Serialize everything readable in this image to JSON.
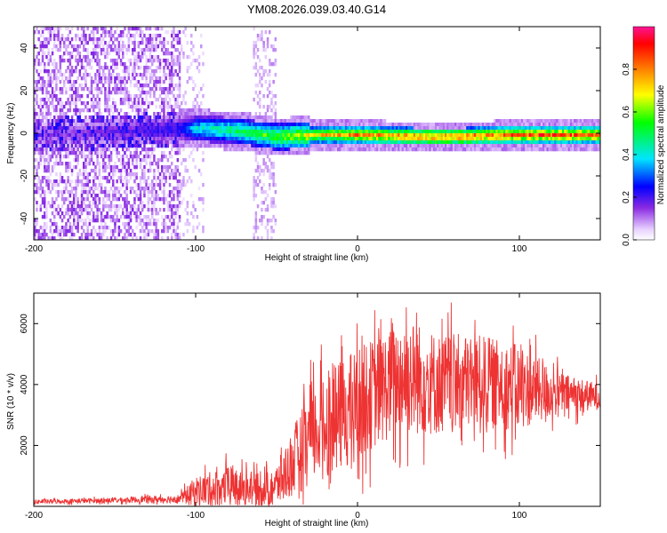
{
  "title": "YM08.2026.039.03.40.G14",
  "chart_data": [
    {
      "type": "heatmap",
      "title": "",
      "xlabel": "Height of straight line (km)",
      "ylabel": "Frequency (Hz)",
      "xlim": [
        -200,
        150
      ],
      "ylim": [
        -50,
        50
      ],
      "xticks": [
        -200,
        -100,
        0,
        100
      ],
      "yticks": [
        -40,
        -20,
        0,
        20,
        40
      ],
      "xtick_labels": [
        "-200",
        "-100",
        "0",
        "100"
      ],
      "ytick_labels": [
        "-40",
        "-20",
        "0",
        "20",
        "40"
      ],
      "colorbar": {
        "label": "Normalized spectral amplitude",
        "range": [
          0,
          1
        ],
        "ticks": [
          0,
          0.2,
          0.4,
          0.6,
          0.8
        ],
        "tick_labels": [
          "0.0",
          "0.2",
          "0.4",
          "0.6",
          "0.8"
        ]
      },
      "ridge_frequency": [
        {
          "x": -200,
          "f": 0
        },
        {
          "x": -100,
          "f": 3
        },
        {
          "x": -75,
          "f": 2
        },
        {
          "x": -50,
          "f": -1
        },
        {
          "x": -25,
          "f": 0
        },
        {
          "x": 0,
          "f": 0
        },
        {
          "x": 50,
          "f": -1
        },
        {
          "x": 100,
          "f": 0
        },
        {
          "x": 150,
          "f": 0
        }
      ],
      "ridge_amplitude": [
        {
          "x": -175,
          "a": 0.15
        },
        {
          "x": -110,
          "a": 0.25
        },
        {
          "x": -100,
          "a": 0.45
        },
        {
          "x": -75,
          "a": 0.55
        },
        {
          "x": -55,
          "a": 0.62
        },
        {
          "x": -30,
          "a": 0.75
        },
        {
          "x": 0,
          "a": 0.85
        },
        {
          "x": 50,
          "a": 0.9
        },
        {
          "x": 100,
          "a": 0.92
        },
        {
          "x": 150,
          "a": 0.88
        }
      ]
    },
    {
      "type": "line",
      "title": "",
      "xlabel": "Height of straight line (km)",
      "ylabel": "SNR (10 * v/v)",
      "xlim": [
        -200,
        150
      ],
      "ylim": [
        0,
        7000
      ],
      "xticks": [
        -200,
        -100,
        0,
        100
      ],
      "yticks": [
        2000,
        4000,
        6000
      ],
      "xtick_labels": [
        "-200",
        "-100",
        "0",
        "100"
      ],
      "ytick_labels": [
        "2000",
        "4000",
        "6000"
      ],
      "series": [
        {
          "name": "SNR",
          "color": "#ee3333",
          "envelope": [
            {
              "x": -200,
              "mean": 150,
              "spread": 100
            },
            {
              "x": -150,
              "mean": 200,
              "spread": 120
            },
            {
              "x": -110,
              "mean": 250,
              "spread": 200
            },
            {
              "x": -100,
              "mean": 500,
              "spread": 700
            },
            {
              "x": -75,
              "mean": 700,
              "spread": 1000
            },
            {
              "x": -60,
              "mean": 500,
              "spread": 700
            },
            {
              "x": -50,
              "mean": 700,
              "spread": 1000
            },
            {
              "x": -30,
              "mean": 2200,
              "spread": 2200
            },
            {
              "x": -20,
              "mean": 2700,
              "spread": 2400
            },
            {
              "x": -10,
              "mean": 3000,
              "spread": 2600
            },
            {
              "x": 0,
              "mean": 3400,
              "spread": 2600
            },
            {
              "x": 20,
              "mean": 4000,
              "spread": 2600
            },
            {
              "x": 30,
              "mean": 4300,
              "spread": 2800
            },
            {
              "x": 50,
              "mean": 4000,
              "spread": 2400
            },
            {
              "x": 75,
              "mean": 4100,
              "spread": 2200
            },
            {
              "x": 100,
              "mean": 3900,
              "spread": 2000
            },
            {
              "x": 125,
              "mean": 3700,
              "spread": 1000
            },
            {
              "x": 150,
              "mean": 3600,
              "spread": 600
            }
          ]
        }
      ]
    }
  ]
}
